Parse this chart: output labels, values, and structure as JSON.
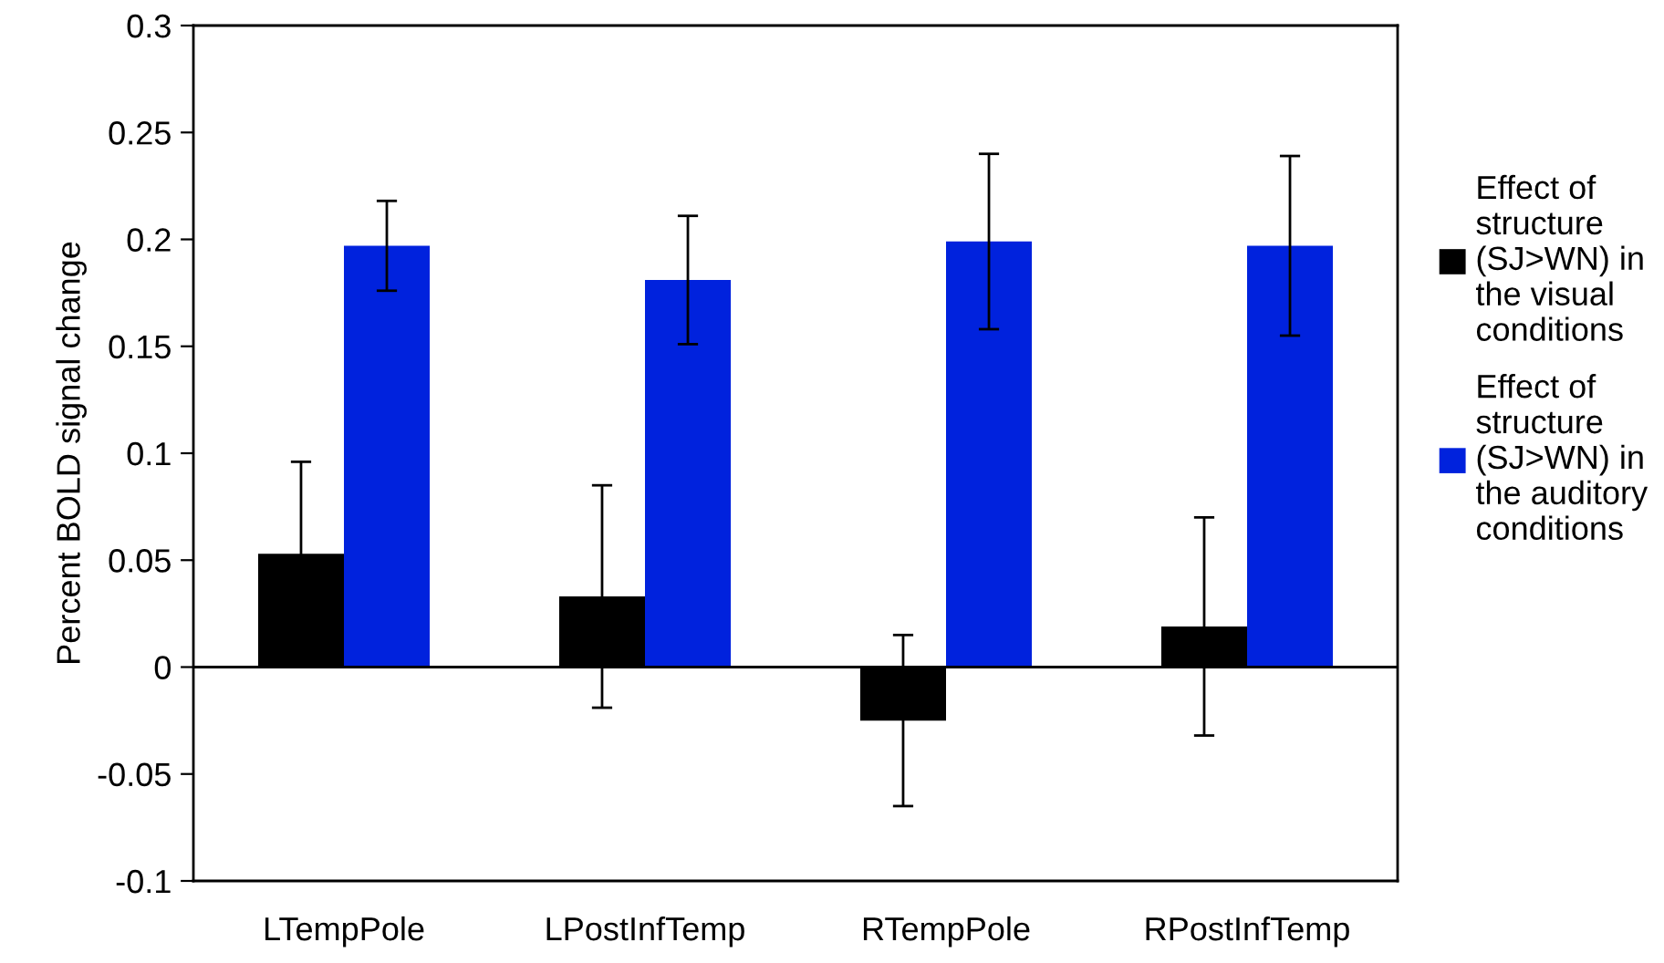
{
  "chart_data": {
    "type": "bar",
    "ylabel": "Percent BOLD signal change",
    "categories": [
      "LTempPole",
      "LPostInfTemp",
      "RTempPole",
      "RPostInfTemp"
    ],
    "series": [
      {
        "name": "Effect of\nstructure\n(SJ>WN) in\nthe visual\nconditions",
        "color": "#000000",
        "values": [
          0.053,
          0.033,
          -0.025,
          0.019
        ],
        "errors": [
          0.043,
          0.052,
          0.04,
          0.051
        ]
      },
      {
        "name": "Effect of\nstructure\n(SJ>WN) in\nthe auditory\nconditions",
        "color": "#0022dd",
        "values": [
          0.197,
          0.181,
          0.199,
          0.197
        ],
        "errors": [
          0.021,
          0.03,
          0.041,
          0.042
        ]
      }
    ],
    "ylim": [
      -0.1,
      0.3
    ],
    "yticks": [
      -0.1,
      -0.05,
      0,
      0.05,
      0.1,
      0.15,
      0.2,
      0.25,
      0.3
    ],
    "ref_lines": [
      {
        "axis": "y",
        "value": 0,
        "color": "#000000"
      }
    ],
    "grid": false,
    "legend": "right"
  }
}
